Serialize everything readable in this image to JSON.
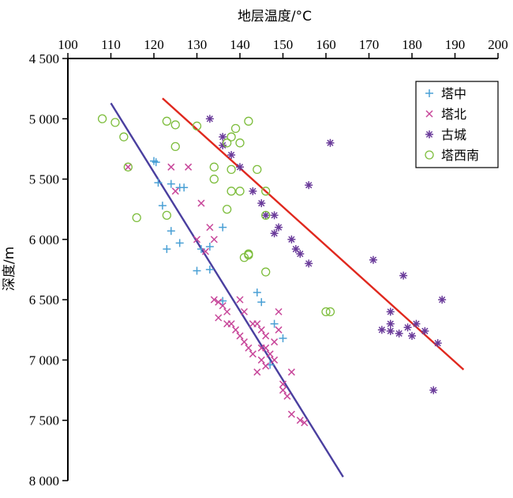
{
  "chart_data": {
    "type": "scatter",
    "xlabel": "地层温度/°C",
    "ylabel": "深度/m",
    "x_axis_position": "top",
    "y_inverted": true,
    "xlim": [
      100,
      200
    ],
    "ylim": [
      4500,
      8000
    ],
    "x_ticks": [
      100,
      110,
      120,
      130,
      140,
      150,
      160,
      170,
      180,
      190,
      200
    ],
    "x_tick_labels": [
      "100",
      "110",
      "120",
      "130",
      "140",
      "150",
      "160",
      "170",
      "180",
      "190",
      "200"
    ],
    "y_ticks": [
      4500,
      5000,
      5500,
      6000,
      6500,
      7000,
      7500,
      8000
    ],
    "y_tick_labels": [
      "4 500",
      "5 000",
      "5 500",
      "6 000",
      "6 500",
      "7 000",
      "7 500",
      "8 000"
    ],
    "grid": false,
    "legend_position": "top-right",
    "series": [
      {
        "name": "塔中",
        "marker": "plus",
        "color": "#4aa0d5",
        "points": [
          [
            120,
            5350
          ],
          [
            120.5,
            5360
          ],
          [
            121,
            5530
          ],
          [
            124,
            5540
          ],
          [
            126,
            5570
          ],
          [
            127,
            5570
          ],
          [
            122,
            5720
          ],
          [
            124,
            5930
          ],
          [
            126,
            6030
          ],
          [
            123,
            6080
          ],
          [
            130,
            6260
          ],
          [
            133,
            6250
          ],
          [
            131,
            6080
          ],
          [
            133,
            6060
          ],
          [
            136,
            5900
          ],
          [
            136,
            6510
          ],
          [
            144,
            6440
          ],
          [
            145,
            6520
          ],
          [
            148,
            6700
          ],
          [
            150,
            6820
          ],
          [
            147,
            7040
          ]
        ]
      },
      {
        "name": "塔北",
        "marker": "x",
        "color": "#c8479a",
        "points": [
          [
            114,
            5400
          ],
          [
            124,
            5400
          ],
          [
            128,
            5400
          ],
          [
            125,
            5600
          ],
          [
            131,
            5700
          ],
          [
            133,
            5900
          ],
          [
            134,
            6000
          ],
          [
            130,
            6000
          ],
          [
            132,
            6100
          ],
          [
            134,
            6500
          ],
          [
            135,
            6520
          ],
          [
            136,
            6550
          ],
          [
            137,
            6600
          ],
          [
            135,
            6650
          ],
          [
            137,
            6700
          ],
          [
            138,
            6700
          ],
          [
            139,
            6750
          ],
          [
            140,
            6500
          ],
          [
            141,
            6600
          ],
          [
            140,
            6800
          ],
          [
            141,
            6850
          ],
          [
            142,
            6900
          ],
          [
            143,
            6950
          ],
          [
            143,
            6700
          ],
          [
            144,
            6700
          ],
          [
            145,
            6750
          ],
          [
            146,
            6800
          ],
          [
            146,
            6900
          ],
          [
            147,
            6950
          ],
          [
            148,
            7000
          ],
          [
            148,
            6850
          ],
          [
            149,
            6750
          ],
          [
            149,
            6600
          ],
          [
            145,
            6900
          ],
          [
            146,
            7050
          ],
          [
            144,
            7100
          ],
          [
            145,
            7000
          ],
          [
            150,
            7200
          ],
          [
            150,
            7250
          ],
          [
            152,
            7100
          ],
          [
            151,
            7300
          ],
          [
            152,
            7450
          ],
          [
            154,
            7500
          ],
          [
            155,
            7520
          ]
        ]
      },
      {
        "name": "古城",
        "marker": "asterisk",
        "color": "#6a3b9a",
        "points": [
          [
            133,
            5000
          ],
          [
            136,
            5150
          ],
          [
            136,
            5220
          ],
          [
            138,
            5300
          ],
          [
            140,
            5400
          ],
          [
            143,
            5600
          ],
          [
            145,
            5700
          ],
          [
            146,
            5800
          ],
          [
            148,
            5800
          ],
          [
            149,
            5900
          ],
          [
            148,
            5950
          ],
          [
            152,
            6000
          ],
          [
            153,
            6080
          ],
          [
            154,
            6120
          ],
          [
            156,
            6200
          ],
          [
            156,
            5550
          ],
          [
            161,
            5200
          ],
          [
            171,
            6170
          ],
          [
            178,
            6300
          ],
          [
            187,
            6500
          ],
          [
            175,
            6600
          ],
          [
            175,
            6700
          ],
          [
            173,
            6750
          ],
          [
            175,
            6760
          ],
          [
            177,
            6780
          ],
          [
            179,
            6730
          ],
          [
            180,
            6800
          ],
          [
            181,
            6700
          ],
          [
            183,
            6760
          ],
          [
            186,
            6860
          ],
          [
            185,
            7250
          ]
        ]
      },
      {
        "name": "塔西南",
        "marker": "circle",
        "color": "#7dbd3c",
        "points": [
          [
            108,
            5000
          ],
          [
            111,
            5030
          ],
          [
            113,
            5150
          ],
          [
            114,
            5400
          ],
          [
            116,
            5820
          ],
          [
            123,
            5020
          ],
          [
            125,
            5050
          ],
          [
            125,
            5230
          ],
          [
            130,
            5060
          ],
          [
            134,
            5400
          ],
          [
            134,
            5500
          ],
          [
            137,
            5200
          ],
          [
            138,
            5150
          ],
          [
            139,
            5080
          ],
          [
            140,
            5200
          ],
          [
            142,
            5020
          ],
          [
            138,
            5420
          ],
          [
            144,
            5420
          ],
          [
            138,
            5600
          ],
          [
            140,
            5600
          ],
          [
            137,
            5750
          ],
          [
            141,
            6150
          ],
          [
            142,
            6130
          ],
          [
            142,
            6120
          ],
          [
            146,
            5600
          ],
          [
            146,
            5800
          ],
          [
            146,
            6270
          ],
          [
            123,
            5800
          ],
          [
            160,
            6600
          ],
          [
            161,
            6600
          ]
        ]
      }
    ],
    "trend_lines": [
      {
        "color": "#4a3f9f",
        "from": [
          110,
          4870
        ],
        "to": [
          164,
          7970
        ]
      },
      {
        "color": "#e0281e",
        "from": [
          122,
          4830
        ],
        "to": [
          192,
          7080
        ]
      }
    ]
  }
}
